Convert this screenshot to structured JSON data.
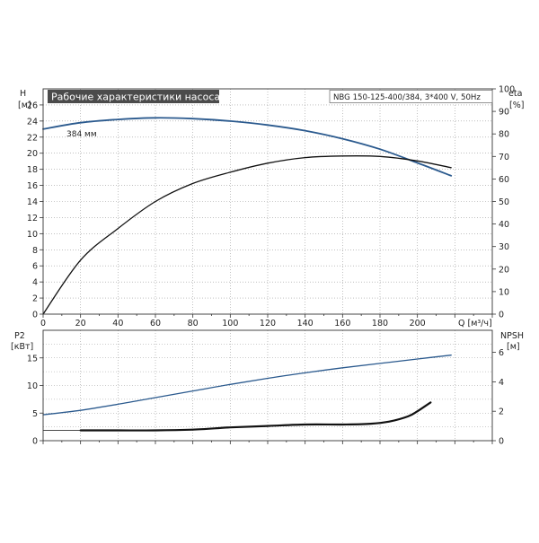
{
  "title": "Рабочие характеристики насоса",
  "model": "NBG 150-125-400/384, 3*400 V, 50Hz",
  "colors": {
    "blue": "#2b5a8e",
    "black": "#111111",
    "grid": "#9a9a9a",
    "axis": "#333333",
    "title_bg": "#4b4b4b"
  },
  "chart_data": [
    {
      "type": "line",
      "xlabel": "Q [м³/ч]",
      "xlim": [
        0,
        240
      ],
      "x_ticks": [
        0,
        20,
        40,
        60,
        80,
        100,
        120,
        140,
        160,
        180,
        200
      ],
      "grid": true,
      "left_axis": {
        "label": "H",
        "unit": "[м]",
        "lim": [
          0,
          28
        ],
        "ticks": [
          0,
          2,
          4,
          6,
          8,
          10,
          12,
          14,
          16,
          18,
          20,
          22,
          24,
          26
        ]
      },
      "right_axis": {
        "label": "eta",
        "unit": "[%]",
        "lim": [
          0,
          100
        ],
        "ticks": [
          0,
          10,
          20,
          30,
          40,
          50,
          60,
          70,
          80,
          90,
          100
        ]
      },
      "annotations": [
        {
          "text": "384 мм"
        }
      ],
      "series": [
        {
          "key": "head",
          "axis": "left",
          "color": "#2b5a8e",
          "x": [
            0,
            20,
            40,
            60,
            80,
            100,
            120,
            140,
            160,
            180,
            200,
            218
          ],
          "y": [
            23.0,
            23.8,
            24.2,
            24.4,
            24.3,
            24.0,
            23.5,
            22.8,
            21.8,
            20.5,
            18.8,
            17.2
          ]
        },
        {
          "key": "efficiency",
          "axis": "right",
          "color": "#111111",
          "x": [
            0,
            20,
            40,
            60,
            80,
            100,
            120,
            140,
            160,
            180,
            200,
            218
          ],
          "y": [
            0,
            24,
            38,
            50,
            58,
            63,
            67,
            69.5,
            70.2,
            70,
            68,
            65
          ]
        }
      ]
    },
    {
      "type": "line",
      "xlim": [
        0,
        240
      ],
      "grid": true,
      "left_axis": {
        "label": "P2",
        "unit": "[кВт]",
        "lim": [
          0,
          20
        ],
        "ticks": [
          0,
          5,
          10,
          15
        ]
      },
      "right_axis": {
        "label": "NPSH",
        "unit": "[м]",
        "lim": [
          0,
          7.5
        ],
        "ticks": [
          0,
          2,
          4,
          6
        ]
      },
      "series": [
        {
          "key": "power",
          "axis": "left",
          "color": "#2b5a8e",
          "x": [
            0,
            20,
            40,
            60,
            80,
            100,
            120,
            140,
            160,
            180,
            200,
            218
          ],
          "y": [
            4.7,
            5.5,
            6.6,
            7.8,
            9.0,
            10.2,
            11.3,
            12.3,
            13.2,
            14.0,
            14.8,
            15.5
          ]
        },
        {
          "key": "npsh",
          "axis": "right",
          "color": "#111111",
          "x": [
            20,
            40,
            60,
            80,
            100,
            120,
            140,
            160,
            175,
            185,
            195,
            200,
            207
          ],
          "y": [
            0.7,
            0.7,
            0.7,
            0.75,
            0.9,
            1.0,
            1.1,
            1.1,
            1.15,
            1.3,
            1.65,
            2.0,
            2.6
          ]
        }
      ]
    }
  ]
}
